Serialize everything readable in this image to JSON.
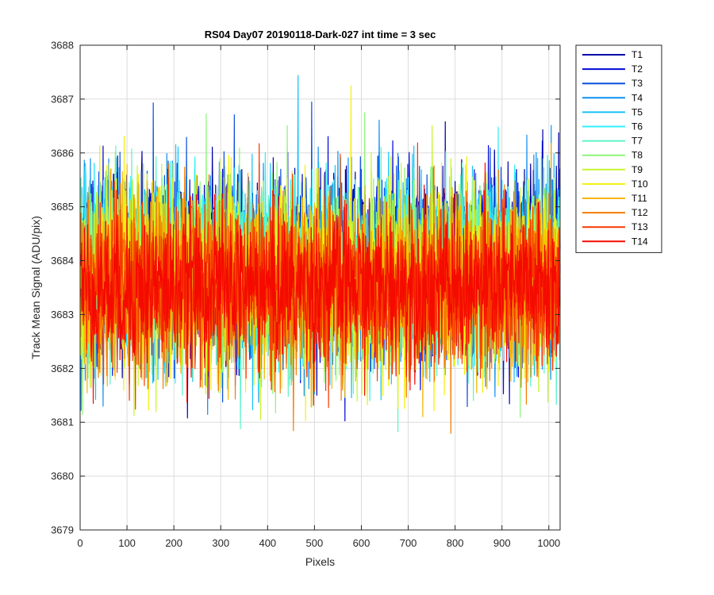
{
  "chart_data": {
    "type": "line",
    "title": "RS04 Day07 20190118-Dark-027 int time = 3 sec",
    "xlabel": "Pixels",
    "ylabel": "Track Mean Signal (ADU/pix)",
    "xlim": [
      0,
      1024
    ],
    "ylim": [
      3679,
      3688
    ],
    "xticks": [
      0,
      100,
      200,
      300,
      400,
      500,
      600,
      700,
      800,
      900,
      1000
    ],
    "yticks": [
      3679,
      3680,
      3681,
      3682,
      3683,
      3684,
      3685,
      3686,
      3687,
      3688
    ],
    "grid": true,
    "legend_position": "outside-top-right",
    "n_points": 1024,
    "series": [
      {
        "name": "T1",
        "color": "#0000a8",
        "mean": 3684.0,
        "noise": 0.85
      },
      {
        "name": "T2",
        "color": "#0008d8",
        "mean": 3683.9,
        "noise": 0.85
      },
      {
        "name": "T3",
        "color": "#0a4fe0",
        "mean": 3683.9,
        "noise": 0.85
      },
      {
        "name": "T4",
        "color": "#0f8ff2",
        "mean": 3683.8,
        "noise": 0.85
      },
      {
        "name": "T5",
        "color": "#19c2f8",
        "mean": 3683.8,
        "noise": 0.85
      },
      {
        "name": "T6",
        "color": "#2ff0f8",
        "mean": 3683.9,
        "noise": 0.85
      },
      {
        "name": "T7",
        "color": "#5cf4c8",
        "mean": 3683.7,
        "noise": 0.85
      },
      {
        "name": "T8",
        "color": "#8cf67a",
        "mean": 3683.7,
        "noise": 0.85
      },
      {
        "name": "T9",
        "color": "#c6f530",
        "mean": 3683.7,
        "noise": 0.85
      },
      {
        "name": "T10",
        "color": "#f5f00a",
        "mean": 3683.6,
        "noise": 0.85
      },
      {
        "name": "T11",
        "color": "#f5b400",
        "mean": 3683.6,
        "noise": 0.85
      },
      {
        "name": "T12",
        "color": "#f57a00",
        "mean": 3683.5,
        "noise": 0.8
      },
      {
        "name": "T13",
        "color": "#f53a00",
        "mean": 3683.5,
        "noise": 0.75
      },
      {
        "name": "T14",
        "color": "#f50a00",
        "mean": 3683.5,
        "noise": 0.7
      }
    ]
  }
}
